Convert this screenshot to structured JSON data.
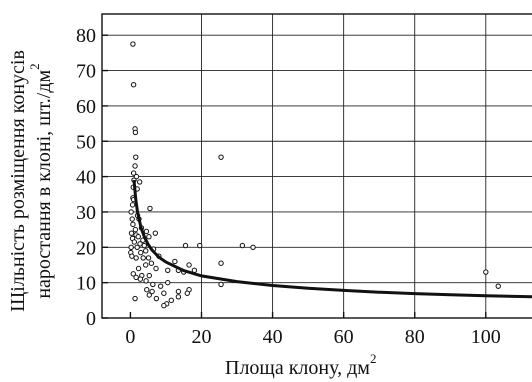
{
  "chart_data": {
    "type": "scatter",
    "xlabel": "Площа клону, дм",
    "xlabel_sup": "2",
    "ylabel_line1": "Щільність розміщення конусів",
    "ylabel_line2": "наростання в клоні, шт./дм",
    "ylabel_sup": "2",
    "xlim": [
      -8,
      113
    ],
    "ylim": [
      0,
      86
    ],
    "x_ticks": [
      0,
      20,
      40,
      60,
      80,
      100
    ],
    "x_tick_labels": [
      "0",
      "20",
      "40",
      "60",
      "80",
      "100"
    ],
    "y_ticks": [
      0,
      10,
      20,
      30,
      40,
      50,
      60,
      70,
      80
    ],
    "y_tick_labels": [
      "0",
      "10",
      "20",
      "30",
      "40",
      "50",
      "60",
      "70",
      "80"
    ],
    "grid": true,
    "legend": "none",
    "series": [
      {
        "kind": "points",
        "points": [
          [
            0.7,
            77.5
          ],
          [
            0.9,
            66.0
          ],
          [
            1.3,
            53.5
          ],
          [
            1.4,
            52.5
          ],
          [
            1.5,
            45.5
          ],
          [
            1.3,
            43.0
          ],
          [
            0.9,
            41.0
          ],
          [
            1.7,
            40.0
          ],
          [
            1.0,
            39.0
          ],
          [
            2.6,
            38.5
          ],
          [
            0.8,
            37.0
          ],
          [
            1.9,
            36.5
          ],
          [
            0.7,
            34.0
          ],
          [
            0.9,
            33.5
          ],
          [
            0.6,
            32.0
          ],
          [
            5.5,
            31.0
          ],
          [
            0.2,
            30.0
          ],
          [
            2.0,
            29.0
          ],
          [
            0.5,
            28.0
          ],
          [
            2.4,
            28.0
          ],
          [
            0.7,
            26.5
          ],
          [
            3.1,
            25.5
          ],
          [
            1.4,
            25.0
          ],
          [
            4.5,
            24.5
          ],
          [
            0.3,
            24.0
          ],
          [
            1.6,
            23.5
          ],
          [
            2.2,
            23.0
          ],
          [
            5.2,
            23.0
          ],
          [
            7.0,
            24.0
          ],
          [
            0.6,
            22.5
          ],
          [
            3.5,
            22.0
          ],
          [
            1.1,
            21.5
          ],
          [
            2.7,
            21.0
          ],
          [
            3.9,
            20.5
          ],
          [
            0.2,
            20.0
          ],
          [
            1.9,
            20.0
          ],
          [
            15.5,
            20.5
          ],
          [
            19.5,
            20.5
          ],
          [
            31.5,
            20.5
          ],
          [
            34.5,
            20.0
          ],
          [
            4.3,
            19.0
          ],
          [
            6.5,
            19.5
          ],
          [
            0.1,
            18.5
          ],
          [
            2.9,
            18.5
          ],
          [
            0.4,
            17.5
          ],
          [
            1.6,
            17.0
          ],
          [
            3.6,
            17.0
          ],
          [
            5.1,
            17.0
          ],
          [
            8.0,
            17.5
          ],
          [
            12.5,
            16.0
          ],
          [
            5.9,
            15.5
          ],
          [
            4.3,
            15.0
          ],
          [
            16.5,
            15.0
          ],
          [
            25.5,
            15.5
          ],
          [
            2.3,
            14.0
          ],
          [
            7.2,
            14.0
          ],
          [
            10.5,
            13.5
          ],
          [
            13.5,
            13.5
          ],
          [
            18.0,
            13.5
          ],
          [
            0.8,
            12.5
          ],
          [
            3.2,
            12.0
          ],
          [
            5.3,
            12.0
          ],
          [
            15.0,
            13.0
          ],
          [
            1.6,
            11.5
          ],
          [
            2.8,
            11.0
          ],
          [
            4.4,
            10.5
          ],
          [
            10.5,
            10.0
          ],
          [
            6.3,
            9.5
          ],
          [
            8.5,
            9.0
          ],
          [
            25.5,
            9.5
          ],
          [
            4.6,
            8.0
          ],
          [
            6.1,
            7.5
          ],
          [
            16.5,
            8.0
          ],
          [
            9.4,
            7.0
          ],
          [
            13.5,
            7.5
          ],
          [
            16.0,
            7.0
          ],
          [
            5.3,
            6.5
          ],
          [
            1.3,
            5.5
          ],
          [
            7.3,
            5.5
          ],
          [
            11.5,
            5.0
          ],
          [
            13.5,
            6.0
          ],
          [
            10.2,
            4.0
          ],
          [
            9.4,
            3.5
          ],
          [
            25.5,
            45.5
          ],
          [
            100.0,
            13.0
          ],
          [
            103.5,
            9.0
          ]
        ]
      },
      {
        "kind": "fitted-curve",
        "points": [
          [
            1.0,
            39.0
          ],
          [
            1.5,
            33.5
          ],
          [
            2.0,
            30.0
          ],
          [
            3.0,
            25.5
          ],
          [
            4.0,
            22.8
          ],
          [
            5.0,
            20.8
          ],
          [
            6.0,
            19.3
          ],
          [
            8.0,
            17.2
          ],
          [
            10.0,
            15.8
          ],
          [
            15.0,
            13.4
          ],
          [
            20.0,
            11.9
          ],
          [
            30.0,
            10.3
          ],
          [
            40.0,
            9.2
          ],
          [
            50.0,
            8.4
          ],
          [
            60.0,
            7.8
          ],
          [
            70.0,
            7.3
          ],
          [
            80.0,
            6.9
          ],
          [
            90.0,
            6.6
          ],
          [
            100.0,
            6.3
          ],
          [
            113.0,
            6.0
          ]
        ]
      }
    ]
  }
}
